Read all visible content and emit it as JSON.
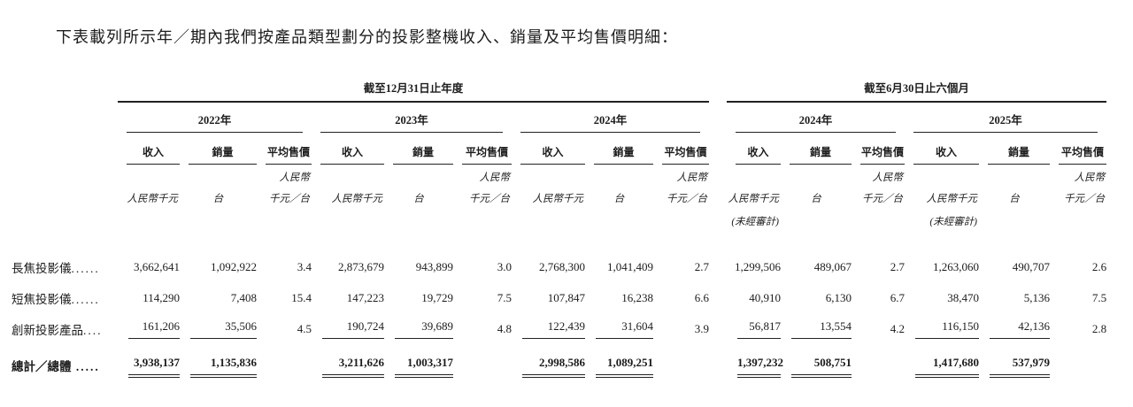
{
  "intro": "下表載列所示年／期內我們按產品類型劃分的投影整機收入、銷量及平均售價明細：",
  "table": {
    "period_groups": [
      {
        "label": "截至12月31日止年度",
        "years": [
          "2022年",
          "2023年",
          "2024年"
        ]
      },
      {
        "label": "截至6月30日止六個月",
        "years": [
          "2024年",
          "2025年"
        ]
      }
    ],
    "metric_headers": {
      "revenue": "收入",
      "volume": "銷量",
      "asp": "平均售價"
    },
    "units": {
      "revenue": "人民幣千元",
      "volume": "台",
      "asp_line1": "人民幣",
      "asp_line2": "千元／台",
      "unaudited": "(未經審計)"
    },
    "rows": [
      {
        "label": "長焦投影儀",
        "leader": "......",
        "values": [
          "3,662,641",
          "1,092,922",
          "3.4",
          "2,873,679",
          "943,899",
          "3.0",
          "2,768,300",
          "1,041,409",
          "2.7",
          "1,299,506",
          "489,067",
          "2.7",
          "1,263,060",
          "490,707",
          "2.6"
        ]
      },
      {
        "label": "短焦投影儀",
        "leader": "......",
        "values": [
          "114,290",
          "7,408",
          "15.4",
          "147,223",
          "19,729",
          "7.5",
          "107,847",
          "16,238",
          "6.6",
          "40,910",
          "6,130",
          "6.7",
          "38,470",
          "5,136",
          "7.5"
        ]
      },
      {
        "label": "創新投影產品",
        "leader": "....",
        "values": [
          "161,206",
          "35,506",
          "4.5",
          "190,724",
          "39,689",
          "4.8",
          "122,439",
          "31,604",
          "3.9",
          "56,817",
          "13,554",
          "4.2",
          "116,150",
          "42,136",
          "2.8"
        ]
      }
    ],
    "total_row": {
      "label": "總計／總體",
      "leader": " .....",
      "values": [
        "3,938,137",
        "1,135,836",
        "",
        "3,211,626",
        "1,003,317",
        "",
        "2,998,586",
        "1,089,251",
        "",
        "1,397,232",
        "508,751",
        "",
        "1,417,680",
        "537,979",
        ""
      ]
    }
  }
}
